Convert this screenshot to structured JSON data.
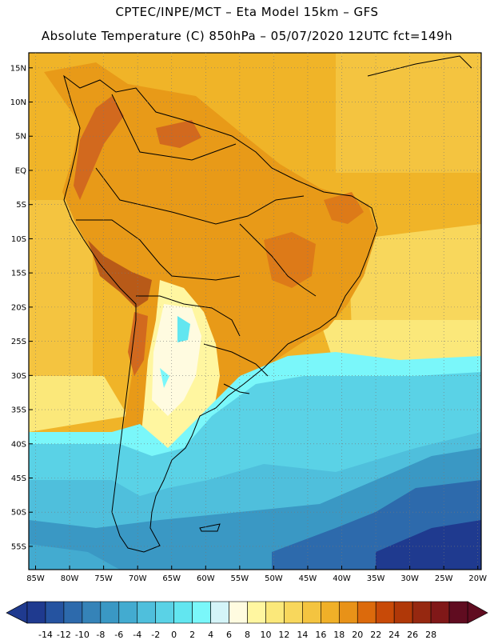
{
  "header": {
    "title_line1": "CPTEC/INPE/MCT –  Eta Model 15km – GFS",
    "title_line2": "Absolute Temperature (C) 850hPa – 05/07/2020 12UTC fct=149h"
  },
  "map": {
    "latitudes": [
      "15N",
      "10N",
      "5N",
      "EQ",
      "5S",
      "10S",
      "15S",
      "20S",
      "25S",
      "30S",
      "35S",
      "40S",
      "45S",
      "50S",
      "55S"
    ],
    "longitudes": [
      "85W",
      "80W",
      "75W",
      "70W",
      "65W",
      "60W",
      "55W",
      "50W",
      "45W",
      "40W",
      "35W",
      "30W",
      "25W",
      "20W"
    ],
    "colors": {
      "ocean_warm": "#f0b428",
      "land_warm": "#e89a18",
      "hot_terrain": "#d2691e",
      "cool": "#5ad2e6",
      "cold": "#3da8cc",
      "very_cold": "#2e7ab4",
      "coastline": "#000000"
    }
  },
  "colorbar": {
    "labels": [
      "-14",
      "-12",
      "-10",
      "-8",
      "-6",
      "-4",
      "-2",
      "0",
      "2",
      "4",
      "6",
      "8",
      "10",
      "12",
      "14",
      "16",
      "18",
      "20",
      "22",
      "24",
      "26",
      "28"
    ],
    "colors": [
      "#1f3a8f",
      "#2553a0",
      "#2d6aac",
      "#3583b8",
      "#3a98c4",
      "#43abd0",
      "#4fbfdc",
      "#5ad2e6",
      "#62e6f0",
      "#7af7fa",
      "#d4f4f8",
      "#fffbe0",
      "#fff6a0",
      "#fbe87a",
      "#f8d75c",
      "#f4c440",
      "#f0b028",
      "#e89218",
      "#dc6a0c",
      "#c84a08",
      "#b03808",
      "#962810",
      "#801818",
      "#600c20"
    ]
  }
}
